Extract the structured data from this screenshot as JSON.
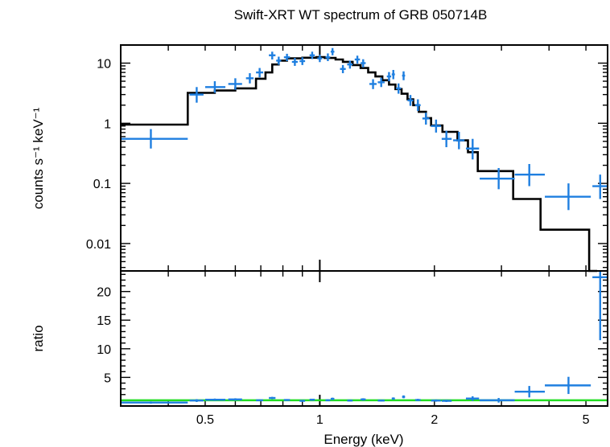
{
  "chart_data": [
    {
      "panel": "spectrum",
      "type": "scatter",
      "title": "Swift-XRT WT spectrum of GRB 050714B",
      "ylabel": "counts s⁻¹ keV⁻¹",
      "x_scale": "log",
      "y_scale": "log",
      "xlim": [
        0.3,
        5.7
      ],
      "ylim": [
        0.0035,
        20
      ],
      "y_ticks": [
        0.01,
        0.1,
        1,
        10
      ],
      "y_tick_labels": [
        "0.01",
        "0.1",
        "1",
        "10"
      ],
      "colors": {
        "data": "#1f7fe0",
        "model": "#000000"
      },
      "series": [
        {
          "style": "crosses",
          "points": [
            {
              "x": 0.36,
              "xlo": 0.3,
              "xhi": 0.45,
              "y": 0.55,
              "ylo": 0.38,
              "yhi": 0.8
            },
            {
              "x": 0.475,
              "xlo": 0.455,
              "xhi": 0.495,
              "y": 3.0,
              "ylo": 2.2,
              "yhi": 4.0
            },
            {
              "x": 0.53,
              "xlo": 0.5,
              "xhi": 0.565,
              "y": 4.0,
              "ylo": 3.2,
              "yhi": 5.0
            },
            {
              "x": 0.6,
              "xlo": 0.575,
              "xhi": 0.625,
              "y": 4.5,
              "ylo": 3.6,
              "yhi": 5.6
            },
            {
              "x": 0.655,
              "xlo": 0.64,
              "xhi": 0.67,
              "y": 5.6,
              "ylo": 4.6,
              "yhi": 6.8
            },
            {
              "x": 0.695,
              "xlo": 0.68,
              "xhi": 0.71,
              "y": 7.0,
              "ylo": 5.8,
              "yhi": 8.3
            },
            {
              "x": 0.75,
              "xlo": 0.735,
              "xhi": 0.765,
              "y": 13.5,
              "ylo": 11.5,
              "yhi": 15.5
            },
            {
              "x": 0.78,
              "xlo": 0.768,
              "xhi": 0.792,
              "y": 11.0,
              "ylo": 9.4,
              "yhi": 12.8
            },
            {
              "x": 0.82,
              "xlo": 0.805,
              "xhi": 0.835,
              "y": 12.5,
              "ylo": 10.8,
              "yhi": 14.3
            },
            {
              "x": 0.86,
              "xlo": 0.845,
              "xhi": 0.875,
              "y": 10.5,
              "ylo": 9.0,
              "yhi": 12.2
            },
            {
              "x": 0.9,
              "xlo": 0.885,
              "xhi": 0.915,
              "y": 10.8,
              "ylo": 9.3,
              "yhi": 12.5
            },
            {
              "x": 0.955,
              "xlo": 0.94,
              "xhi": 0.97,
              "y": 13.5,
              "ylo": 11.7,
              "yhi": 15.5
            },
            {
              "x": 1.0,
              "xlo": 0.985,
              "xhi": 1.015,
              "y": 12.0,
              "ylo": 10.4,
              "yhi": 13.8
            },
            {
              "x": 1.05,
              "xlo": 1.035,
              "xhi": 1.065,
              "y": 12.5,
              "ylo": 10.8,
              "yhi": 14.5
            },
            {
              "x": 1.08,
              "xlo": 1.068,
              "xhi": 1.092,
              "y": 15.5,
              "ylo": 13.5,
              "yhi": 17.8
            },
            {
              "x": 1.15,
              "xlo": 1.13,
              "xhi": 1.17,
              "y": 8.0,
              "ylo": 6.8,
              "yhi": 9.3
            },
            {
              "x": 1.2,
              "xlo": 1.18,
              "xhi": 1.22,
              "y": 9.5,
              "ylo": 8.1,
              "yhi": 11.0
            },
            {
              "x": 1.255,
              "xlo": 1.235,
              "xhi": 1.275,
              "y": 11.5,
              "ylo": 9.8,
              "yhi": 13.3
            },
            {
              "x": 1.3,
              "xlo": 1.28,
              "xhi": 1.32,
              "y": 10.0,
              "ylo": 8.5,
              "yhi": 11.6
            },
            {
              "x": 1.38,
              "xlo": 1.35,
              "xhi": 1.41,
              "y": 4.5,
              "ylo": 3.7,
              "yhi": 5.4
            },
            {
              "x": 1.45,
              "xlo": 1.42,
              "xhi": 1.48,
              "y": 4.8,
              "ylo": 4.0,
              "yhi": 5.7
            },
            {
              "x": 1.52,
              "xlo": 1.5,
              "xhi": 1.54,
              "y": 6.0,
              "ylo": 5.0,
              "yhi": 7.1
            },
            {
              "x": 1.56,
              "xlo": 1.545,
              "xhi": 1.575,
              "y": 6.5,
              "ylo": 5.4,
              "yhi": 7.7
            },
            {
              "x": 1.61,
              "xlo": 1.585,
              "xhi": 1.635,
              "y": 3.8,
              "ylo": 3.1,
              "yhi": 4.6
            },
            {
              "x": 1.66,
              "xlo": 1.645,
              "xhi": 1.675,
              "y": 6.2,
              "ylo": 5.2,
              "yhi": 7.3
            },
            {
              "x": 1.73,
              "xlo": 1.7,
              "xhi": 1.76,
              "y": 2.4,
              "ylo": 1.95,
              "yhi": 2.95
            },
            {
              "x": 1.81,
              "xlo": 1.78,
              "xhi": 1.84,
              "y": 2.0,
              "ylo": 1.6,
              "yhi": 2.5
            },
            {
              "x": 1.9,
              "xlo": 1.86,
              "xhi": 1.94,
              "y": 1.2,
              "ylo": 0.95,
              "yhi": 1.5
            },
            {
              "x": 2.02,
              "xlo": 1.96,
              "xhi": 2.08,
              "y": 0.9,
              "ylo": 0.7,
              "yhi": 1.15
            },
            {
              "x": 2.15,
              "xlo": 2.09,
              "xhi": 2.22,
              "y": 0.55,
              "ylo": 0.4,
              "yhi": 0.75
            },
            {
              "x": 2.32,
              "xlo": 2.24,
              "xhi": 2.4,
              "y": 0.52,
              "ylo": 0.37,
              "yhi": 0.72
            },
            {
              "x": 2.52,
              "xlo": 2.42,
              "xhi": 2.62,
              "y": 0.38,
              "ylo": 0.25,
              "yhi": 0.55
            },
            {
              "x": 2.95,
              "xlo": 2.63,
              "xhi": 3.25,
              "y": 0.12,
              "ylo": 0.08,
              "yhi": 0.18
            },
            {
              "x": 3.55,
              "xlo": 3.25,
              "xhi": 3.9,
              "y": 0.14,
              "ylo": 0.09,
              "yhi": 0.21
            },
            {
              "x": 4.5,
              "xlo": 3.9,
              "xhi": 5.15,
              "y": 0.06,
              "ylo": 0.036,
              "yhi": 0.1
            },
            {
              "x": 5.45,
              "xlo": 5.2,
              "xhi": 5.7,
              "y": 0.09,
              "ylo": 0.055,
              "yhi": 0.14
            }
          ]
        },
        {
          "style": "step",
          "edges": [
            0.3,
            0.45,
            0.53,
            0.6,
            0.68,
            0.72,
            0.75,
            0.78,
            0.82,
            0.9,
            0.98,
            1.03,
            1.1,
            1.15,
            1.22,
            1.28,
            1.34,
            1.4,
            1.46,
            1.52,
            1.58,
            1.64,
            1.7,
            1.76,
            1.82,
            1.9,
            1.96,
            2.1,
            2.3,
            2.45,
            2.6,
            3.22,
            3.8,
            5.1,
            5.35
          ],
          "values": [
            0.95,
            3.2,
            3.5,
            3.8,
            5.5,
            7.0,
            9.5,
            11.0,
            12.0,
            12.3,
            12.6,
            12.2,
            11.5,
            10.5,
            9.3,
            8.3,
            7.0,
            6.0,
            5.2,
            4.4,
            3.7,
            3.1,
            2.5,
            2.0,
            1.55,
            1.22,
            0.92,
            0.72,
            0.52,
            0.33,
            0.16,
            0.055,
            0.017,
            0.0035
          ]
        }
      ]
    },
    {
      "panel": "ratio",
      "type": "scatter",
      "xlabel": "Energy (keV)",
      "ylabel": "ratio",
      "x_scale": "log",
      "xlim": [
        0.3,
        5.7
      ],
      "ylim": [
        0,
        23.6
      ],
      "x_ticks": [
        0.5,
        1,
        2,
        5
      ],
      "x_tick_labels": [
        "0.5",
        "1",
        "2",
        "5"
      ],
      "y_ticks": [
        5,
        10,
        15,
        20
      ],
      "y_tick_labels": [
        "5",
        "10",
        "15",
        "20"
      ],
      "reference_value": 1.0,
      "colors": {
        "data": "#1f7fe0",
        "reference": "#22dd22"
      },
      "series": [
        {
          "style": "crosses",
          "points": [
            {
              "x": 0.36,
              "xlo": 0.3,
              "xhi": 0.45,
              "y": 0.6,
              "ylo": 0.4,
              "yhi": 0.8
            },
            {
              "x": 0.475,
              "xlo": 0.455,
              "xhi": 0.495,
              "y": 0.95,
              "ylo": 0.7,
              "yhi": 1.2
            },
            {
              "x": 0.53,
              "xlo": 0.5,
              "xhi": 0.565,
              "y": 1.1,
              "ylo": 0.9,
              "yhi": 1.3
            },
            {
              "x": 0.6,
              "xlo": 0.575,
              "xhi": 0.625,
              "y": 1.15,
              "ylo": 0.95,
              "yhi": 1.35
            },
            {
              "x": 0.695,
              "xlo": 0.68,
              "xhi": 0.71,
              "y": 1.0,
              "ylo": 0.85,
              "yhi": 1.15
            },
            {
              "x": 0.75,
              "xlo": 0.735,
              "xhi": 0.765,
              "y": 1.4,
              "ylo": 1.2,
              "yhi": 1.6
            },
            {
              "x": 0.82,
              "xlo": 0.805,
              "xhi": 0.835,
              "y": 1.05,
              "ylo": 0.9,
              "yhi": 1.2
            },
            {
              "x": 0.9,
              "xlo": 0.885,
              "xhi": 0.915,
              "y": 0.9,
              "ylo": 0.75,
              "yhi": 1.05
            },
            {
              "x": 0.955,
              "xlo": 0.94,
              "xhi": 0.97,
              "y": 1.1,
              "ylo": 0.95,
              "yhi": 1.25
            },
            {
              "x": 1.05,
              "xlo": 1.035,
              "xhi": 1.065,
              "y": 1.0,
              "ylo": 0.85,
              "yhi": 1.15
            },
            {
              "x": 1.08,
              "xlo": 1.068,
              "xhi": 1.092,
              "y": 1.25,
              "ylo": 1.05,
              "yhi": 1.45
            },
            {
              "x": 1.2,
              "xlo": 1.18,
              "xhi": 1.22,
              "y": 0.95,
              "ylo": 0.8,
              "yhi": 1.1
            },
            {
              "x": 1.3,
              "xlo": 1.28,
              "xhi": 1.32,
              "y": 1.15,
              "ylo": 0.95,
              "yhi": 1.35
            },
            {
              "x": 1.45,
              "xlo": 1.42,
              "xhi": 1.48,
              "y": 0.95,
              "ylo": 0.8,
              "yhi": 1.1
            },
            {
              "x": 1.56,
              "xlo": 1.545,
              "xhi": 1.575,
              "y": 1.3,
              "ylo": 1.1,
              "yhi": 1.5
            },
            {
              "x": 1.66,
              "xlo": 1.645,
              "xhi": 1.675,
              "y": 1.6,
              "ylo": 1.35,
              "yhi": 1.85
            },
            {
              "x": 1.81,
              "xlo": 1.78,
              "xhi": 1.84,
              "y": 1.05,
              "ylo": 0.85,
              "yhi": 1.25
            },
            {
              "x": 2.02,
              "xlo": 1.96,
              "xhi": 2.08,
              "y": 0.95,
              "ylo": 0.75,
              "yhi": 1.15
            },
            {
              "x": 2.15,
              "xlo": 2.09,
              "xhi": 2.22,
              "y": 0.9,
              "ylo": 0.7,
              "yhi": 1.1
            },
            {
              "x": 2.52,
              "xlo": 2.42,
              "xhi": 2.62,
              "y": 1.3,
              "ylo": 0.9,
              "yhi": 1.7
            },
            {
              "x": 2.95,
              "xlo": 2.63,
              "xhi": 3.25,
              "y": 1.0,
              "ylo": 0.6,
              "yhi": 1.4
            },
            {
              "x": 3.55,
              "xlo": 3.25,
              "xhi": 3.9,
              "y": 2.5,
              "ylo": 1.5,
              "yhi": 3.5
            },
            {
              "x": 4.5,
              "xlo": 3.9,
              "xhi": 5.15,
              "y": 3.6,
              "ylo": 2.1,
              "yhi": 5.1
            },
            {
              "x": 5.45,
              "xlo": 5.2,
              "xhi": 5.7,
              "y": 22.5,
              "ylo": 11.5,
              "yhi": 23.6
            }
          ]
        }
      ]
    }
  ]
}
